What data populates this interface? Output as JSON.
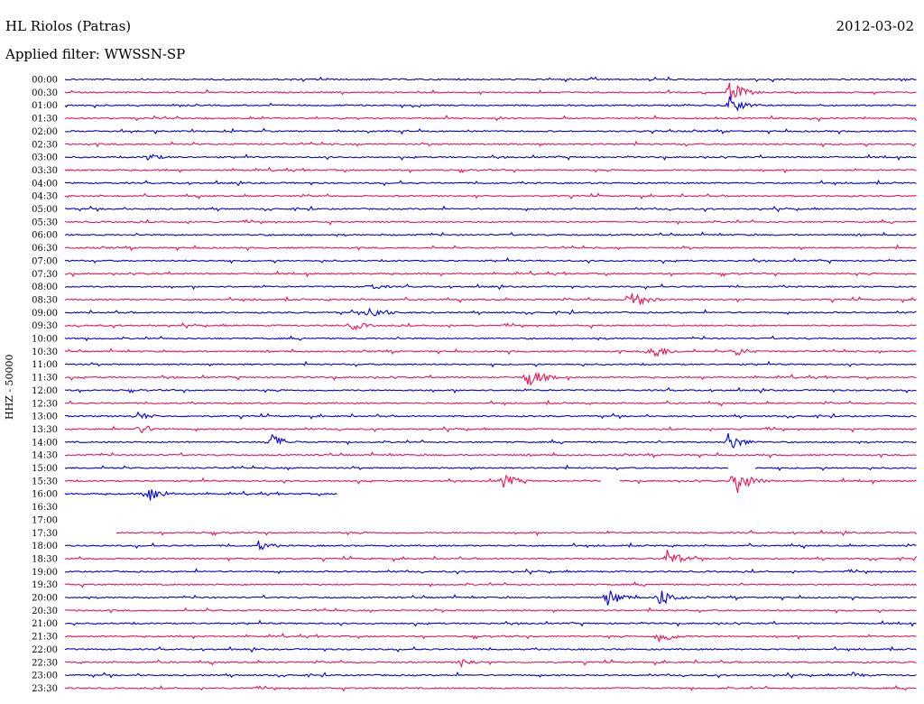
{
  "header": {
    "station": "HL Riolos (Patras)",
    "date": "2012-03-02",
    "filter_label": "Applied filter: WWSSN-SP"
  },
  "chart_data": {
    "type": "line",
    "title": "HL Riolos (Patras)",
    "subtitle": "Applied filter: WWSSN-SP",
    "ylabel": "HHZ - 50000",
    "xlabel": "",
    "row_labels": [
      "00:00",
      "00:30",
      "01:00",
      "01:30",
      "02:00",
      "02:30",
      "03:00",
      "03:30",
      "04:00",
      "04:30",
      "05:00",
      "05:30",
      "06:00",
      "06:30",
      "07:00",
      "07:30",
      "08:00",
      "08:30",
      "09:00",
      "09:30",
      "10:00",
      "10:30",
      "11:00",
      "11:30",
      "12:00",
      "12:30",
      "13:00",
      "13:30",
      "14:00",
      "14:30",
      "15:00",
      "15:30",
      "16:00",
      "16:30",
      "17:00",
      "17:30",
      "18:00",
      "18:30",
      "19:00",
      "19:30",
      "20:00",
      "20:30",
      "21:00",
      "21:30",
      "22:00",
      "22:30",
      "23:00",
      "23:30"
    ],
    "row_minutes": 30,
    "colors": [
      "#0000dd",
      "#ee1155"
    ],
    "gaps": [
      {
        "row": "16:00",
        "from": 0.32,
        "to": 1.0
      },
      {
        "row": "16:30",
        "from": 0.0,
        "to": 1.0
      },
      {
        "row": "17:00",
        "from": 0.0,
        "to": 1.0
      },
      {
        "row": "17:30",
        "from": 0.0,
        "to": 0.06
      },
      {
        "row": "15:30",
        "from": 0.63,
        "to": 0.65
      },
      {
        "row": "15:00",
        "from": 0.78,
        "to": 0.81
      }
    ],
    "events": [
      {
        "row": "00:30",
        "minute": 23.4,
        "amplitude": 14
      },
      {
        "row": "01:00",
        "minute": 23.4,
        "amplitude": 11
      },
      {
        "row": "03:00",
        "minute": 2.9,
        "amplitude": 5
      },
      {
        "row": "08:00",
        "minute": 10.7,
        "amplitude": 5
      },
      {
        "row": "08:30",
        "minute": 19.9,
        "amplitude": 13
      },
      {
        "row": "09:00",
        "minute": 10.7,
        "amplitude": 10
      },
      {
        "row": "09:30",
        "minute": 10.1,
        "amplitude": 6
      },
      {
        "row": "10:30",
        "minute": 20.6,
        "amplitude": 12
      },
      {
        "row": "10:30",
        "minute": 23.6,
        "amplitude": 6
      },
      {
        "row": "11:30",
        "minute": 16.3,
        "amplitude": 13
      },
      {
        "row": "13:00",
        "minute": 2.5,
        "amplitude": 6
      },
      {
        "row": "13:30",
        "minute": 2.6,
        "amplitude": 7
      },
      {
        "row": "14:00",
        "minute": 7.2,
        "amplitude": 11
      },
      {
        "row": "14:00",
        "minute": 23.3,
        "amplitude": 12
      },
      {
        "row": "15:30",
        "minute": 15.4,
        "amplitude": 9
      },
      {
        "row": "15:30",
        "minute": 23.6,
        "amplitude": 17
      },
      {
        "row": "16:00",
        "minute": 2.9,
        "amplitude": 11
      },
      {
        "row": "18:00",
        "minute": 6.8,
        "amplitude": 6
      },
      {
        "row": "18:30",
        "minute": 21.2,
        "amplitude": 11
      },
      {
        "row": "20:00",
        "minute": 19.1,
        "amplitude": 11
      },
      {
        "row": "20:00",
        "minute": 20.9,
        "amplitude": 12
      },
      {
        "row": "21:30",
        "minute": 20.9,
        "amplitude": 10
      },
      {
        "row": "22:30",
        "minute": 13.9,
        "amplitude": 6
      },
      {
        "row": "23:00",
        "minute": 27.7,
        "amplitude": 4
      }
    ]
  }
}
